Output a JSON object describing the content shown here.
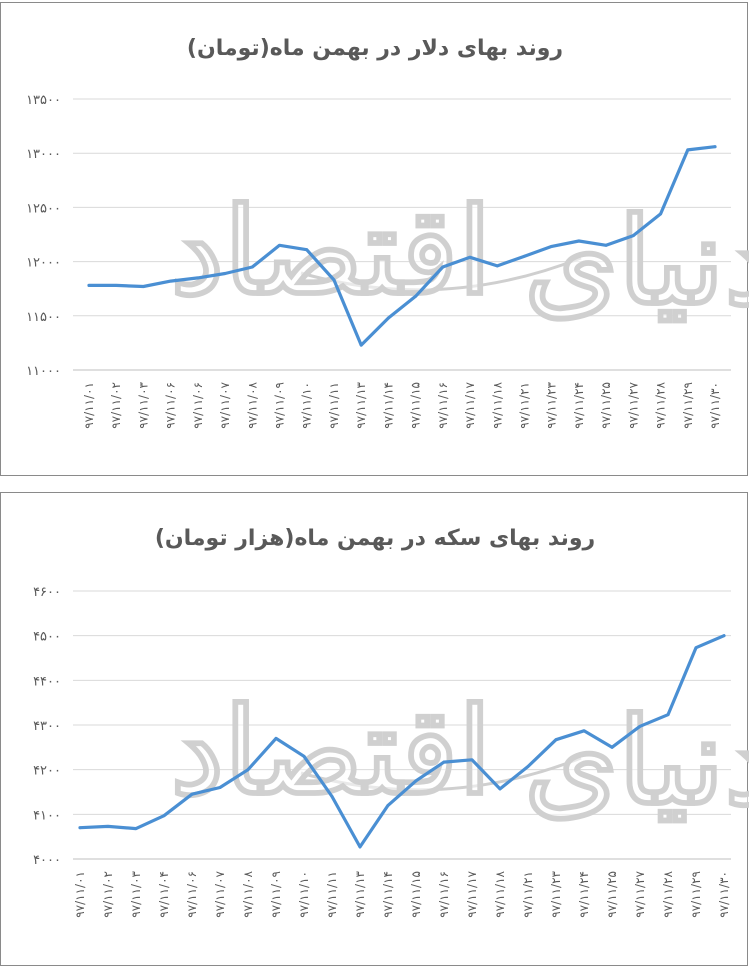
{
  "chart_data": [
    {
      "type": "line",
      "title": "روند بهای دلار در بهمن ماه(تومان)",
      "ylim": [
        11000,
        13500
      ],
      "yticks": [
        "۱۱۰۰۰",
        "۱۱۵۰۰",
        "۱۲۰۰۰",
        "۱۲۵۰۰",
        "۱۳۰۰۰",
        "۱۳۵۰۰"
      ],
      "ytick_values": [
        11000,
        11500,
        12000,
        12500,
        13000,
        13500
      ],
      "categories": [
        "۹۷/۱۱/۰۱",
        "۹۷/۱۱/۰۲",
        "۹۷/۱۱/۰۳",
        "۹۷/۱۱/۰۶",
        "۹۷/۱۱/۰۶",
        "۹۷/۱۱/۰۷",
        "۹۷/۱۱/۰۸",
        "۹۷/۱۱/۰۹",
        "۹۷/۱۱/۱۰",
        "۹۷/۱۱/۱۱",
        "۹۷/۱۱/۱۳",
        "۹۷/۱۱/۱۴",
        "۹۷/۱۱/۱۵",
        "۹۷/۱۱/۱۶",
        "۹۷/۱۱/۱۷",
        "۹۷/۱۱/۱۸",
        "۹۷/۱۱/۲۱",
        "۹۷/۱۱/۲۳",
        "۹۷/۱۱/۲۴",
        "۹۷/۱۱/۲۵",
        "۹۷/۱۱/۲۷",
        "۹۷/۱۱/۲۸",
        "۹۷/۱۱/۲۹",
        "۹۷/۱۱/۳۰"
      ],
      "values": [
        11780,
        11780,
        11770,
        11820,
        11850,
        11890,
        11950,
        12150,
        12110,
        11830,
        11230,
        11480,
        11680,
        11950,
        12040,
        11960,
        12050,
        12140,
        12190,
        12150,
        12240,
        12440,
        13030,
        13060
      ],
      "grid": true,
      "legend": "none",
      "color": "#4a8fd3"
    },
    {
      "type": "line",
      "title": "روند بهای سکه در بهمن ماه(هزار تومان)",
      "ylim": [
        4000,
        4600
      ],
      "yticks": [
        "۴۰۰۰",
        "۴۱۰۰",
        "۴۲۰۰",
        "۴۳۰۰",
        "۴۴۰۰",
        "۴۵۰۰",
        "۴۶۰۰"
      ],
      "ytick_values": [
        4000,
        4100,
        4200,
        4300,
        4400,
        4500,
        4600
      ],
      "categories": [
        "۹۷/۱۱/۰۱",
        "۹۷/۱۱/۰۲",
        "۹۷/۱۱/۰۳",
        "۹۷/۱۱/۰۴",
        "۹۷/۱۱/۰۶",
        "۹۷/۱۱/۰۷",
        "۹۷/۱۱/۰۸",
        "۹۷/۱۱/۰۹",
        "۹۷/۱۱/۱۰",
        "۹۷/۱۱/۱۱",
        "۹۷/۱۱/۱۳",
        "۹۷/۱۱/۱۴",
        "۹۷/۱۱/۱۵",
        "۹۷/۱۱/۱۶",
        "۹۷/۱۱/۱۷",
        "۹۷/۱۱/۱۸",
        "۹۷/۱۱/۲۱",
        "۹۷/۱۱/۲۳",
        "۹۷/۱۱/۲۴",
        "۹۷/۱۱/۲۵",
        "۹۷/۱۱/۲۷",
        "۹۷/۱۱/۲۸",
        "۹۷/۱۱/۲۹",
        "۹۷/۱۱/۳۰"
      ],
      "values": [
        4070,
        4073,
        4068,
        4097,
        4145,
        4160,
        4200,
        4270,
        4230,
        4140,
        4027,
        4120,
        4175,
        4217,
        4222,
        4157,
        4207,
        4267,
        4287,
        4250,
        4297,
        4323,
        4473,
        4500
      ],
      "grid": true,
      "legend": "none",
      "color": "#4a8fd3"
    }
  ],
  "watermark": {
    "text": "دنیای اقتصاد",
    "icon": "watermark-logo-icon"
  }
}
